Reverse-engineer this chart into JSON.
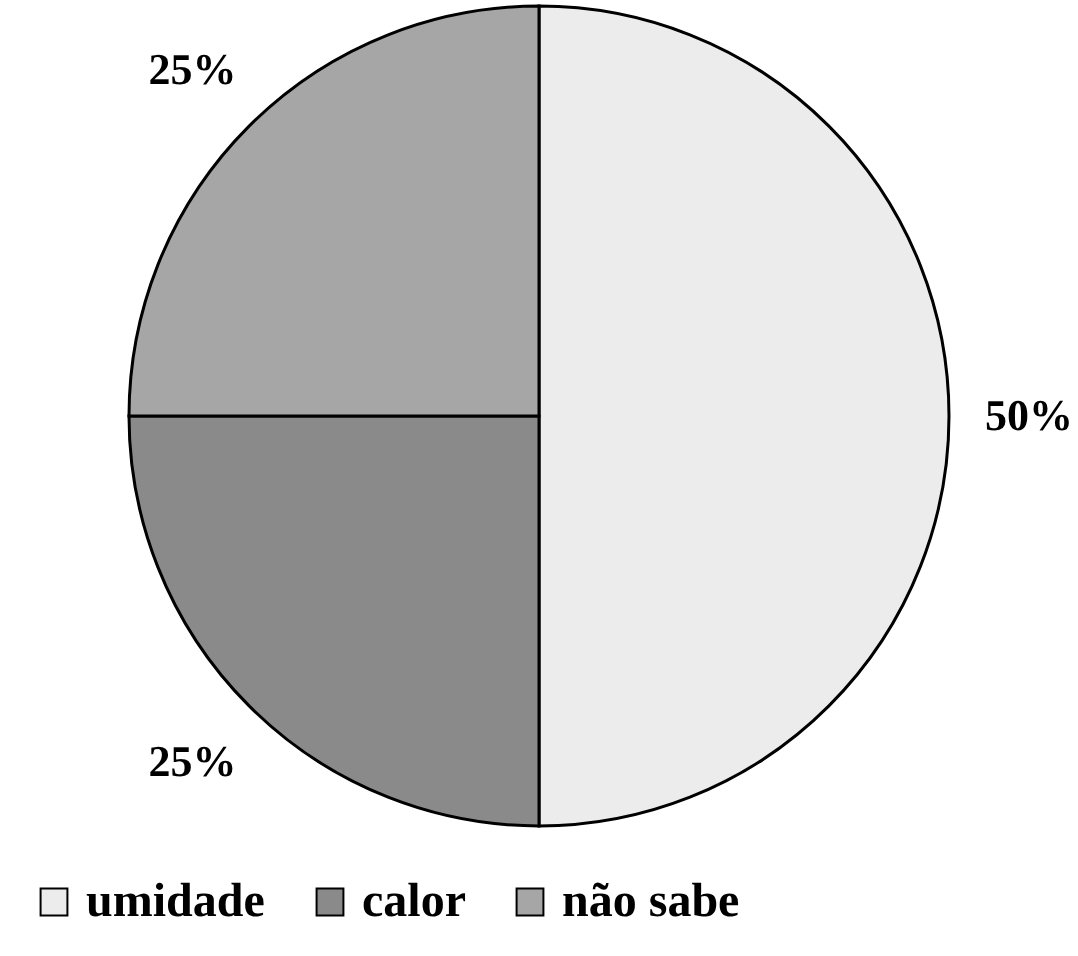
{
  "chart_data": {
    "type": "pie",
    "categories": [
      "umidade",
      "calor",
      "não sabe"
    ],
    "values": [
      50,
      25,
      25
    ],
    "colors": [
      "#ececec",
      "#8a8a8a",
      "#a6a6a6"
    ],
    "value_labels": [
      "50%",
      "25%",
      "25%"
    ],
    "legend": "bottom"
  }
}
